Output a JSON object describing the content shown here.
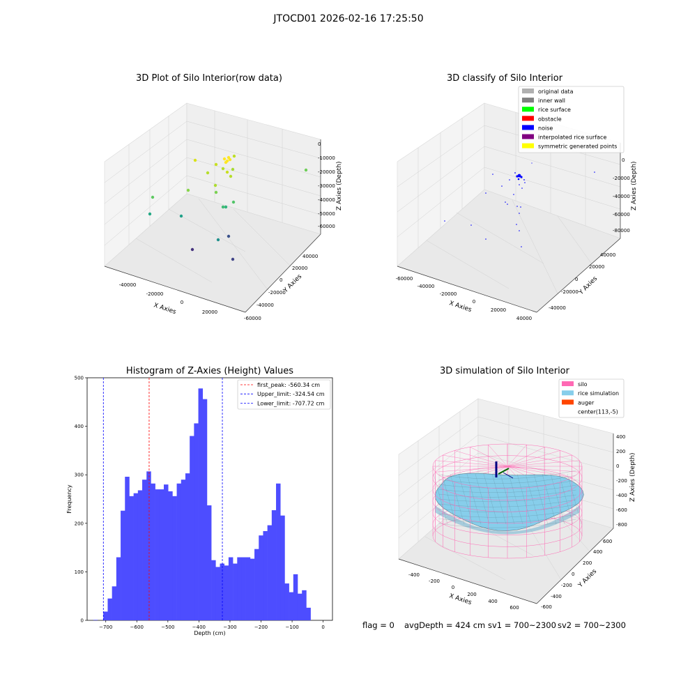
{
  "figure": {
    "suptitle": "JTOCD01 2026-02-16 17:25:50",
    "footer": {
      "flag": "flag = 0",
      "avg_depth": "avgDepth = 424 cm",
      "sv1": "sv1 = 700~2300",
      "sv2": "sv2 = 700~2300"
    }
  },
  "chart_data": [
    {
      "type": "scatter",
      "title": "3D Plot of Silo Interior(row data)",
      "xlabel": "X Axies",
      "ylabel": "Y Axies",
      "zlabel": "Z Axies (Depth)",
      "x_ticks": [
        "-40000",
        "-20000",
        "0",
        "20000"
      ],
      "y_ticks": [
        "-60000",
        "-40000",
        "-20000",
        "0",
        "20000",
        "40000"
      ],
      "z_ticks": [
        "0",
        "-10000",
        "-20000",
        "-30000",
        "-40000",
        "-50000",
        "-60000"
      ],
      "zlim": [
        -66000,
        5000
      ],
      "colormap": "viridis"
    },
    {
      "type": "scatter",
      "title": "3D classify of Silo Interior",
      "xlabel": "X Axies",
      "ylabel": "Y Axies",
      "zlabel": "Z Axies (Depth)",
      "x_ticks": [
        "-60000",
        "-40000",
        "-20000",
        "0",
        "20000",
        "40000"
      ],
      "y_ticks": [
        "-40000",
        "-20000",
        "0",
        "20000",
        "40000"
      ],
      "z_ticks": [
        "0",
        "-20000",
        "-40000",
        "-60000",
        "-80000"
      ],
      "zlim": [
        -90000,
        10000
      ],
      "legend": [
        {
          "label": "original data",
          "color": "#b0b0b0"
        },
        {
          "label": "inner wall",
          "color": "#808080"
        },
        {
          "label": "rice surface",
          "color": "#00ff00"
        },
        {
          "label": "obstacle",
          "color": "#ff0000"
        },
        {
          "label": "noise",
          "color": "#0000ff"
        },
        {
          "label": "interpolated rice surface",
          "color": "#800080"
        },
        {
          "label": "symmetric generated points",
          "color": "#ffff00"
        }
      ],
      "legend_loc": "top-right"
    },
    {
      "type": "bar",
      "title": "Histogram of Z-Axies (Height) Values",
      "xlabel": "Depth (cm)",
      "ylabel": "Frequency",
      "xlim": [
        -760,
        30
      ],
      "ylim": [
        0,
        500
      ],
      "x_ticks": [
        -700,
        -600,
        -500,
        -400,
        -300,
        -200,
        -100,
        0
      ],
      "y_ticks": [
        0,
        100,
        200,
        300,
        400,
        500
      ],
      "bin_start": -707.72,
      "bin_width": 13.9,
      "values": [
        18,
        45,
        70,
        130,
        226,
        296,
        256,
        262,
        268,
        290,
        307,
        282,
        270,
        270,
        280,
        266,
        256,
        282,
        290,
        303,
        380,
        406,
        478,
        456,
        237,
        124,
        110,
        117,
        113,
        130,
        117,
        130,
        130,
        130,
        127,
        147,
        175,
        184,
        196,
        227,
        282,
        216,
        76,
        58,
        95,
        55,
        62,
        26
      ],
      "extra_bins": [
        {
          "x": -740,
          "value": 1
        }
      ],
      "bar_color": "#4d4dff",
      "vlines": [
        {
          "label": "first_peak: -560.34 cm",
          "value": -560.34,
          "color": "#ff0000"
        },
        {
          "label": "Upper_limit: -324.54 cm",
          "value": -324.54,
          "color": "#0000ff"
        },
        {
          "label": "Lower_limit: -707.72 cm",
          "value": -707.72,
          "color": "#0000ff"
        }
      ],
      "legend_loc": "top-right"
    },
    {
      "type": "surface",
      "title": "3D simulation of Silo Interior",
      "xlabel": "X Axies",
      "ylabel": "Y Axies",
      "zlabel": "Z Axies (Depth)",
      "x_ticks": [
        "-400",
        "-200",
        "0",
        "200",
        "400",
        "600"
      ],
      "y_ticks": [
        "-600",
        "-400",
        "-200",
        "0",
        "200",
        "400",
        "600"
      ],
      "z_ticks": [
        "400",
        "200",
        "0",
        "-200",
        "-400",
        "-600",
        "-800"
      ],
      "zlim": [
        -900,
        480
      ],
      "legend": [
        {
          "label": "silo",
          "color": "#ff69b4"
        },
        {
          "label": "rice simulation",
          "color": "#87ceeb"
        },
        {
          "label": "auger",
          "color": "#ff4500"
        },
        {
          "label": "center(113,-5)",
          "color": "#ffffff"
        }
      ],
      "legend_loc": "top-right"
    }
  ]
}
